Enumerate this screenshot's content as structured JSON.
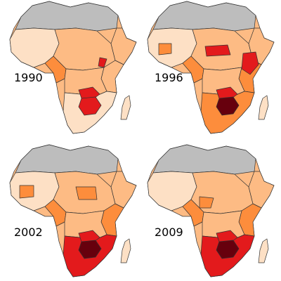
{
  "panels": [
    {
      "label": "1990"
    },
    {
      "label": "1996"
    },
    {
      "label": "2002"
    },
    {
      "label": "2009"
    }
  ],
  "palette": {
    "no_data": "#bdbdbd",
    "lowest": "#fde0c5",
    "low": "#fdbb84",
    "mid": "#fd8d3c",
    "high": "#e31a1c",
    "highest": "#67000d"
  }
}
